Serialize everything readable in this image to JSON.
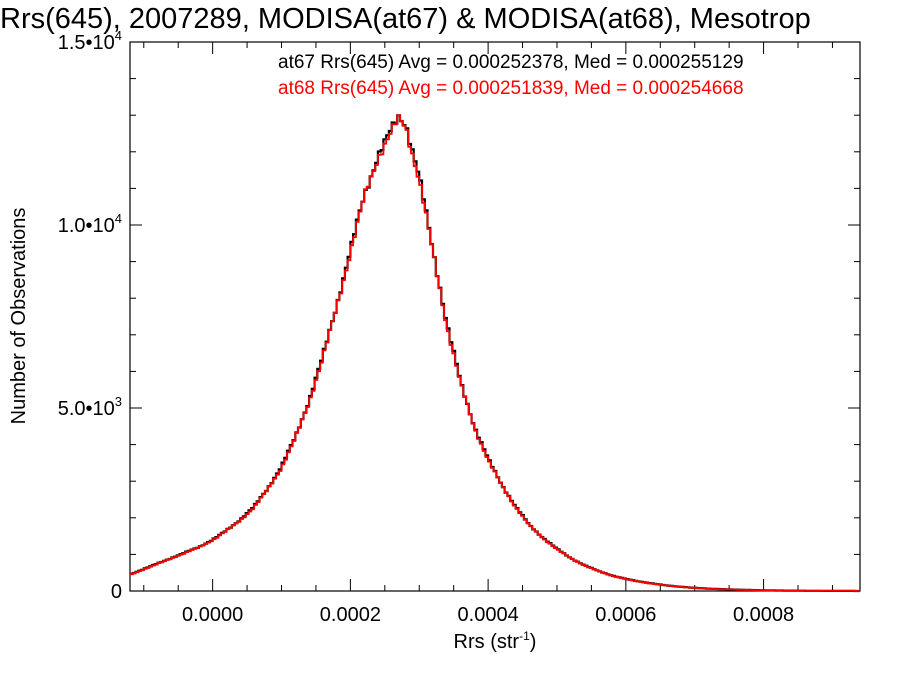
{
  "chart_data": {
    "type": "line",
    "title": "Rrs(645), 2007289, MODISA(at67) & MODISA(at68), Mesotrop",
    "xlabel": "Rrs (str",
    "xlabel_sup": "-1",
    "xlabel_close": ")",
    "ylabel": "Number of Observations",
    "xlim": [
      -0.00012,
      0.00094
    ],
    "ylim": [
      0,
      15000
    ],
    "xticks": [
      {
        "value": 0.0,
        "label": "0.0000"
      },
      {
        "value": 0.0002,
        "label": "0.0002"
      },
      {
        "value": 0.0004,
        "label": "0.0004"
      },
      {
        "value": 0.0006,
        "label": "0.0006"
      },
      {
        "value": 0.0008,
        "label": "0.0008"
      }
    ],
    "yticks": [
      {
        "value": 0,
        "label": "0",
        "sup": ""
      },
      {
        "value": 5000,
        "label": "5.0•10",
        "sup": "3"
      },
      {
        "value": 10000,
        "label": "1.0•10",
        "sup": "4"
      },
      {
        "value": 15000,
        "label": "1.5•10",
        "sup": "4"
      }
    ],
    "series": [
      {
        "name": "at67",
        "color": "#000000",
        "x": [
          -0.00012,
          -0.0001,
          -8e-05,
          -6e-05,
          -4e-05,
          -2e-05,
          0.0,
          2e-05,
          4e-05,
          6e-05,
          8e-05,
          0.0001,
          0.00012,
          0.00014,
          0.00016,
          0.00018,
          0.0002,
          0.00022,
          0.00024,
          0.00026,
          0.00027,
          0.00028,
          0.0003,
          0.00032,
          0.00034,
          0.00036,
          0.00038,
          0.0004,
          0.00042,
          0.00044,
          0.00046,
          0.00048,
          0.0005,
          0.00052,
          0.00054,
          0.00056,
          0.00058,
          0.0006,
          0.00062,
          0.00064,
          0.00066,
          0.00068,
          0.0007,
          0.00072,
          0.00074,
          0.00076,
          0.00078,
          0.0008,
          0.00082,
          0.00084,
          0.00086,
          0.00088,
          0.0009,
          0.00092,
          0.00094
        ],
        "y": [
          450,
          600,
          750,
          900,
          1050,
          1200,
          1400,
          1650,
          1950,
          2300,
          2800,
          3400,
          4200,
          5200,
          6400,
          7800,
          9300,
          10800,
          11900,
          12600,
          12950,
          12800,
          11300,
          9300,
          7300,
          5700,
          4500,
          3600,
          2900,
          2300,
          1800,
          1450,
          1150,
          900,
          700,
          550,
          420,
          330,
          260,
          200,
          150,
          115,
          85,
          65,
          50,
          38,
          28,
          20,
          14,
          10,
          7,
          5,
          3,
          2,
          1
        ]
      },
      {
        "name": "at68",
        "color": "#ff0000",
        "x": [
          -0.00012,
          -0.0001,
          -8e-05,
          -6e-05,
          -4e-05,
          -2e-05,
          0.0,
          2e-05,
          4e-05,
          6e-05,
          8e-05,
          0.0001,
          0.00012,
          0.00014,
          0.00016,
          0.00018,
          0.0002,
          0.00022,
          0.00024,
          0.00026,
          0.00027,
          0.00028,
          0.0003,
          0.00032,
          0.00034,
          0.00036,
          0.00038,
          0.0004,
          0.00042,
          0.00044,
          0.00046,
          0.00048,
          0.0005,
          0.00052,
          0.00054,
          0.00056,
          0.00058,
          0.0006,
          0.00062,
          0.00064,
          0.00066,
          0.00068,
          0.0007,
          0.00072,
          0.00074,
          0.00076,
          0.00078,
          0.0008,
          0.00082,
          0.00084,
          0.00086,
          0.00088,
          0.0009,
          0.00092,
          0.00094
        ],
        "y": [
          440,
          590,
          740,
          890,
          1040,
          1190,
          1390,
          1640,
          1930,
          2280,
          2780,
          3370,
          4170,
          5170,
          6370,
          7760,
          9260,
          10760,
          11850,
          12550,
          12880,
          12720,
          11230,
          9250,
          7260,
          5670,
          4470,
          3580,
          2880,
          2290,
          1790,
          1440,
          1140,
          895,
          695,
          545,
          415,
          325,
          255,
          195,
          148,
          112,
          83,
          63,
          48,
          37,
          27,
          19,
          13,
          9,
          6,
          4,
          3,
          2,
          1
        ]
      }
    ],
    "annotations": [
      {
        "text": "at67 Rrs(645) Avg = 0.000252378, Med = 0.000255129",
        "color": "#000000"
      },
      {
        "text": "at68 Rrs(645) Avg = 0.000251839, Med = 0.000254668",
        "color": "#ff0000"
      }
    ]
  }
}
